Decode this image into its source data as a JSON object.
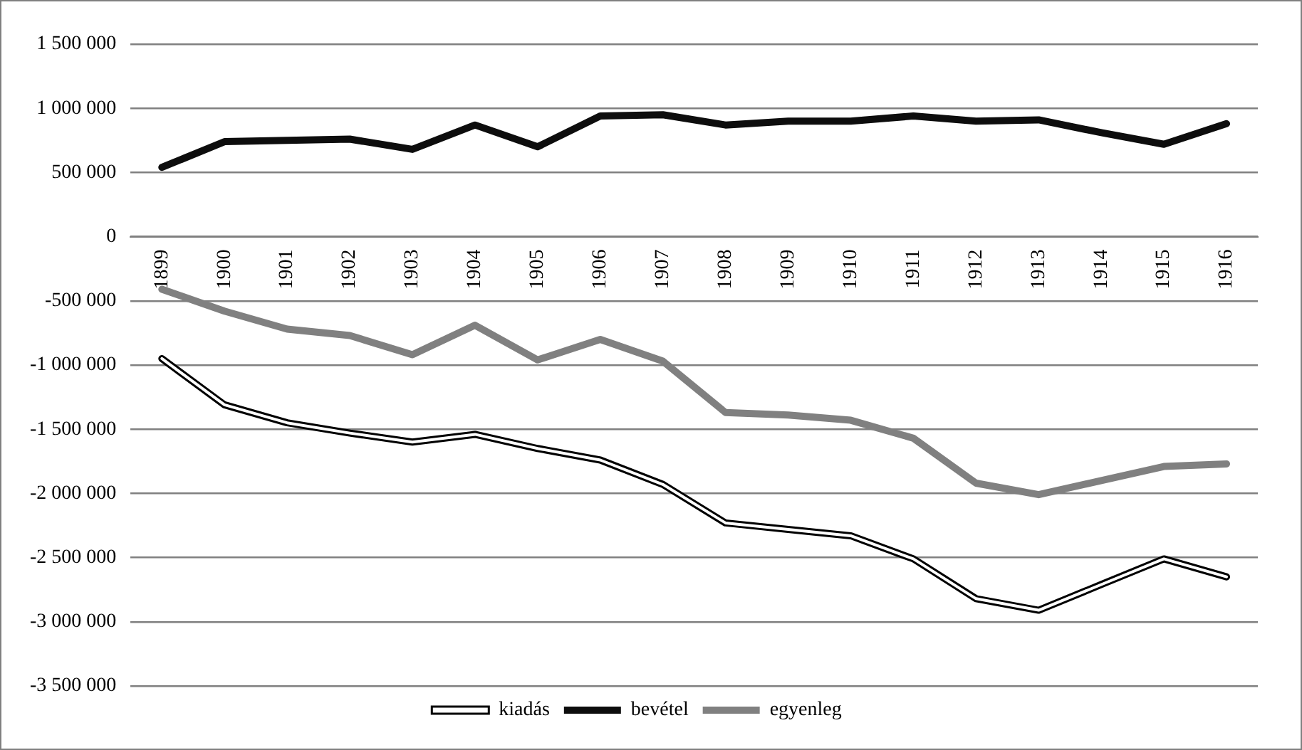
{
  "chart_data": {
    "type": "line",
    "categories": [
      "1899",
      "1900",
      "1901",
      "1902",
      "1903",
      "1904",
      "1905",
      "1906",
      "1907",
      "1908",
      "1909",
      "1910",
      "1911",
      "1912",
      "1913",
      "1914",
      "1915",
      "1916"
    ],
    "series": [
      {
        "name": "kiadás",
        "color": "#000000",
        "values": [
          -950000,
          -1310000,
          -1450000,
          -1530000,
          -1600000,
          -1540000,
          -1650000,
          -1740000,
          -1930000,
          -2230000,
          -2280000,
          -2330000,
          -2510000,
          -2820000,
          -2910000,
          -2710000,
          -2510000,
          -2650000
        ]
      },
      {
        "name": "bevétel",
        "color": "#0d0d0d",
        "values": [
          540000,
          740000,
          750000,
          760000,
          680000,
          870000,
          700000,
          940000,
          950000,
          870000,
          900000,
          900000,
          940000,
          900000,
          910000,
          810000,
          720000,
          880000
        ]
      },
      {
        "name": "egyenleg",
        "color": "#808080",
        "values": [
          -410000,
          -580000,
          -720000,
          -770000,
          -920000,
          -690000,
          -960000,
          -800000,
          -970000,
          -1370000,
          -1390000,
          -1430000,
          -1570000,
          -1920000,
          -2010000,
          -1900000,
          -1790000,
          -1770000
        ]
      }
    ],
    "ylim": [
      -3500000,
      1500000
    ],
    "yticks": [
      {
        "value": -3500000,
        "label": "-3 500 000"
      },
      {
        "value": -3000000,
        "label": "-3 000 000"
      },
      {
        "value": -2500000,
        "label": "-2 500 000"
      },
      {
        "value": -2000000,
        "label": "-2 000 000"
      },
      {
        "value": -1500000,
        "label": "-1 500 000"
      },
      {
        "value": -1000000,
        "label": "-1 000 000"
      },
      {
        "value": -500000,
        "label": "-500 000"
      },
      {
        "value": 0,
        "label": "0"
      },
      {
        "value": 500000,
        "label": "500 000"
      },
      {
        "value": 1000000,
        "label": "1 000 000"
      },
      {
        "value": 1500000,
        "label": "1 500 000"
      }
    ],
    "grid": "y",
    "legend": "bottom",
    "marker": "none",
    "line_style": "solid"
  }
}
